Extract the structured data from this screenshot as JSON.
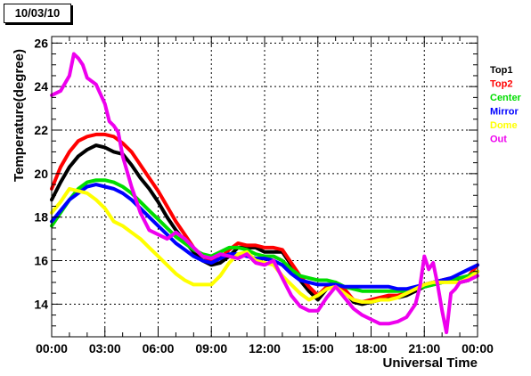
{
  "date_label": "10/03/10",
  "chart_data": {
    "type": "line",
    "xlabel": "Universal Time",
    "ylabel": "Temperature(degree)",
    "x_ticks": [
      "00:00",
      "03:00",
      "06:00",
      "09:00",
      "12:00",
      "15:00",
      "18:00",
      "21:00",
      "00:00"
    ],
    "y_ticks": [
      14,
      16,
      18,
      20,
      22,
      24,
      26
    ],
    "xlim_hours": [
      0,
      24
    ],
    "ylim": [
      12.5,
      26.3
    ],
    "grid": true,
    "legend_position": "right",
    "series": [
      {
        "name": "Top1",
        "color": "#000000",
        "x": [
          0,
          0.5,
          1,
          1.5,
          2,
          2.5,
          3,
          3.5,
          4,
          4.5,
          5,
          5.5,
          6,
          6.5,
          7,
          7.5,
          8,
          8.5,
          9,
          9.5,
          10,
          10.5,
          11,
          11.5,
          12,
          12.5,
          13,
          13.5,
          14,
          14.5,
          15,
          15.5,
          16,
          16.5,
          17,
          17.5,
          18,
          18.5,
          19,
          19.5,
          20,
          20.5,
          21,
          21.5,
          22,
          22.5,
          23,
          23.5,
          24
        ],
        "y": [
          18.8,
          19.6,
          20.3,
          20.8,
          21.1,
          21.3,
          21.2,
          21.0,
          20.9,
          20.4,
          19.8,
          19.3,
          18.7,
          18.0,
          17.4,
          16.9,
          16.4,
          16.0,
          15.8,
          15.9,
          16.2,
          16.6,
          16.6,
          16.6,
          16.4,
          16.4,
          16.4,
          15.8,
          15.1,
          14.6,
          14.2,
          14.7,
          14.9,
          14.6,
          14.1,
          14.0,
          14.1,
          14.2,
          14.3,
          14.3,
          14.4,
          14.6,
          14.8,
          14.9,
          15.0,
          15.1,
          15.0,
          15.1,
          15.5
        ]
      },
      {
        "name": "Top2",
        "color": "#ff0000",
        "x": [
          0,
          0.5,
          1,
          1.5,
          2,
          2.5,
          3,
          3.5,
          4,
          4.5,
          5,
          5.5,
          6,
          6.5,
          7,
          7.5,
          8,
          8.5,
          9,
          9.5,
          10,
          10.5,
          11,
          11.5,
          12,
          12.5,
          13,
          13.5,
          14,
          14.5,
          15,
          15.5,
          16,
          16.5,
          17,
          17.5,
          18,
          18.5,
          19,
          19.5,
          20,
          20.5,
          21,
          21.5,
          22,
          22.5,
          23,
          23.5,
          24
        ],
        "y": [
          19.3,
          20.3,
          21.0,
          21.5,
          21.7,
          21.8,
          21.8,
          21.7,
          21.4,
          21.0,
          20.4,
          19.8,
          19.2,
          18.5,
          17.8,
          17.2,
          16.6,
          16.2,
          16.0,
          16.1,
          16.5,
          16.8,
          16.7,
          16.7,
          16.6,
          16.6,
          16.5,
          15.9,
          15.3,
          14.8,
          14.4,
          14.8,
          15.0,
          14.7,
          14.2,
          14.1,
          14.2,
          14.3,
          14.4,
          14.4,
          14.5,
          14.7,
          14.9,
          15.0,
          15.1,
          15.2,
          15.2,
          15.3,
          15.8
        ]
      },
      {
        "name": "Center",
        "color": "#00dd00",
        "x": [
          0,
          0.5,
          1,
          1.5,
          2,
          2.5,
          3,
          3.5,
          4,
          4.5,
          5,
          5.5,
          6,
          6.5,
          7,
          7.5,
          8,
          8.5,
          9,
          9.5,
          10,
          10.5,
          11,
          11.5,
          12,
          12.5,
          13,
          13.5,
          14,
          14.5,
          15,
          15.5,
          16,
          16.5,
          17,
          17.5,
          18,
          18.5,
          19,
          19.5,
          20,
          20.5,
          21,
          21.5,
          22,
          22.5,
          23,
          23.5,
          24
        ],
        "y": [
          17.6,
          18.2,
          18.8,
          19.3,
          19.6,
          19.7,
          19.7,
          19.6,
          19.4,
          19.1,
          18.7,
          18.3,
          17.9,
          17.5,
          17.1,
          16.8,
          16.5,
          16.3,
          16.2,
          16.4,
          16.6,
          16.6,
          16.5,
          16.3,
          16.2,
          16.2,
          16.0,
          15.6,
          15.3,
          15.2,
          15.1,
          15.1,
          15.0,
          14.8,
          14.7,
          14.6,
          14.6,
          14.6,
          14.6,
          14.6,
          14.6,
          14.7,
          14.8,
          14.9,
          15.0,
          15.1,
          15.2,
          15.3,
          15.5
        ]
      },
      {
        "name": "Mirror",
        "color": "#0000ff",
        "x": [
          0,
          0.5,
          1,
          1.5,
          2,
          2.5,
          3,
          3.5,
          4,
          4.5,
          5,
          5.5,
          6,
          6.5,
          7,
          7.5,
          8,
          8.5,
          9,
          9.5,
          10,
          10.5,
          11,
          11.5,
          12,
          12.5,
          13,
          13.5,
          14,
          14.5,
          15,
          15.5,
          16,
          16.5,
          17,
          17.5,
          18,
          18.5,
          19,
          19.5,
          20,
          20.5,
          21,
          21.5,
          22,
          22.5,
          23,
          23.5,
          24
        ],
        "y": [
          17.8,
          18.3,
          18.8,
          19.1,
          19.4,
          19.5,
          19.4,
          19.3,
          19.1,
          18.8,
          18.4,
          18.0,
          17.6,
          17.2,
          16.8,
          16.5,
          16.2,
          16.0,
          15.9,
          16.1,
          16.3,
          16.3,
          16.2,
          16.1,
          16.1,
          16.0,
          15.8,
          15.4,
          15.1,
          15.0,
          14.9,
          14.9,
          14.9,
          14.8,
          14.8,
          14.8,
          14.8,
          14.8,
          14.8,
          14.7,
          14.7,
          14.8,
          14.9,
          15.0,
          15.1,
          15.2,
          15.4,
          15.6,
          15.8
        ]
      },
      {
        "name": "Dome",
        "color": "#ffff00",
        "x": [
          0,
          0.5,
          1,
          1.5,
          2,
          2.5,
          3,
          3.5,
          4,
          4.5,
          5,
          5.5,
          6,
          6.5,
          7,
          7.5,
          8,
          8.5,
          9,
          9.5,
          10,
          10.5,
          11,
          11.5,
          12,
          12.5,
          13,
          13.5,
          14,
          14.5,
          15,
          15.5,
          16,
          16.5,
          17,
          17.5,
          18,
          18.5,
          19,
          19.5,
          20,
          20.5,
          21,
          21.5,
          22,
          22.5,
          23,
          23.5,
          24
        ],
        "y": [
          18.2,
          18.7,
          19.3,
          19.2,
          19.1,
          18.8,
          18.4,
          17.8,
          17.6,
          17.3,
          17.0,
          16.6,
          16.2,
          15.8,
          15.4,
          15.1,
          14.9,
          14.9,
          14.9,
          15.3,
          15.9,
          16.3,
          16.4,
          16.0,
          15.9,
          15.8,
          15.3,
          14.9,
          14.5,
          14.2,
          14.4,
          14.7,
          14.8,
          14.5,
          14.2,
          14.1,
          14.1,
          14.2,
          14.2,
          14.3,
          14.5,
          14.7,
          14.9,
          15.0,
          15.0,
          15.0,
          15.0,
          15.2,
          15.5
        ]
      },
      {
        "name": "Out",
        "color": "#ee00ee",
        "x": [
          0,
          0.5,
          1,
          1.25,
          1.5,
          1.75,
          2,
          2.5,
          3,
          3.25,
          3.5,
          3.75,
          4,
          4.5,
          5,
          5.5,
          6,
          6.5,
          7,
          7.5,
          8,
          8.5,
          9,
          9.5,
          10,
          10.5,
          11,
          11.5,
          12,
          12.5,
          13,
          13.5,
          14,
          14.5,
          15,
          15.5,
          16,
          16.5,
          17,
          17.5,
          18,
          18.5,
          19,
          19.5,
          20,
          20.5,
          20.75,
          21,
          21.25,
          21.5,
          21.75,
          22,
          22.25,
          22.5,
          22.75,
          23,
          23.5,
          24
        ],
        "y": [
          23.6,
          23.8,
          24.5,
          25.5,
          25.3,
          25.0,
          24.4,
          24.1,
          23.2,
          22.4,
          22.2,
          21.9,
          20.8,
          19.4,
          18.2,
          17.4,
          17.2,
          17.0,
          17.3,
          17.0,
          16.6,
          16.2,
          16.1,
          16.3,
          16.2,
          16.1,
          16.3,
          15.9,
          15.8,
          16.0,
          15.2,
          14.4,
          13.9,
          13.7,
          13.7,
          14.3,
          14.8,
          14.3,
          13.8,
          13.5,
          13.3,
          13.1,
          13.1,
          13.2,
          13.4,
          14.0,
          14.8,
          16.2,
          15.6,
          15.9,
          14.9,
          13.7,
          12.7,
          14.5,
          14.7,
          15.0,
          15.1,
          15.3
        ]
      }
    ]
  }
}
